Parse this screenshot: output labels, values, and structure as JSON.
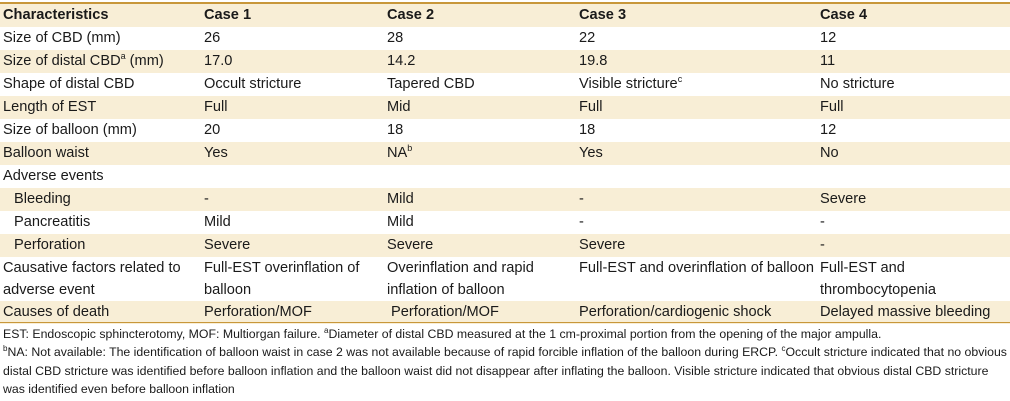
{
  "header": [
    "Characteristics",
    "Case 1",
    "Case 2",
    "Case 3",
    "Case 4"
  ],
  "rows": {
    "cbd_size": [
      "Size of CBD (mm)",
      "26",
      "28",
      "22",
      "12"
    ],
    "distal_cbd_size": {
      "label_pre": "Size of distal CBD",
      "label_sup": "a",
      "label_post": " (mm)",
      "c1": "17.0",
      "c2": "14.2",
      "c3": "19.8",
      "c4": "11"
    },
    "distal_shape": {
      "label": "Shape of distal CBD",
      "c1": "Occult stricture",
      "c2": "Tapered CBD",
      "c3": "Visible stricture",
      "c3_sup": "c",
      "c4": "No stricture"
    },
    "est_length": [
      "Length of EST",
      "Full",
      "Mid",
      "Full",
      "Full"
    ],
    "balloon_size": [
      "Size of balloon (mm)",
      "20",
      "18",
      "18",
      "12"
    ],
    "balloon_waist": {
      "label": "Balloon waist",
      "c1": "Yes",
      "c2": "NA",
      "c2_sup": "b",
      "c3": "Yes",
      "c4": "No"
    },
    "adverse_events": [
      "Adverse events"
    ],
    "bleeding": [
      "Bleeding",
      "-",
      "Mild",
      "-",
      "Severe"
    ],
    "pancreatitis": [
      "Pancreatitis",
      "Mild",
      "Mild",
      "-",
      "-"
    ],
    "perforation": [
      "Perforation",
      "Severe",
      "Severe",
      "Severe",
      "-"
    ],
    "causative": [
      "Causative factors related to adverse event",
      "Full-EST overinflation of balloon",
      "Overinflation and rapid inflation of balloon",
      "Full-EST and overinflation of balloon",
      "Full-EST and thrombocytopenia"
    ],
    "death": [
      "Causes of death",
      "Perforation/MOF",
      " Perforation/MOF",
      "Perforation/cardiogenic shock",
      "Delayed massive bleeding"
    ]
  },
  "footnote": {
    "line1_pre": "EST: Endoscopic sphincterotomy, MOF: Multiorgan failure. ",
    "sup_a": "a",
    "line1_post": "Diameter of distal CBD measured at the 1 cm-proximal portion from the opening of the major ampulla.",
    "sup_b": "b",
    "part_b": "NA: Not available: The identification of balloon waist in case 2 was not available because of rapid forcible inflation of the balloon during ERCP. ",
    "sup_c": "c",
    "part_c": "Occult stricture indicated that no obvious distal CBD stricture was identified before balloon inflation and the balloon waist did not disappear after inflating the balloon. Visible stricture indicated that obvious distal CBD stricture was identified even before balloon inflation"
  },
  "colors": {
    "accent_rule": "#c8973a",
    "row_shade": "#f8eed6"
  }
}
